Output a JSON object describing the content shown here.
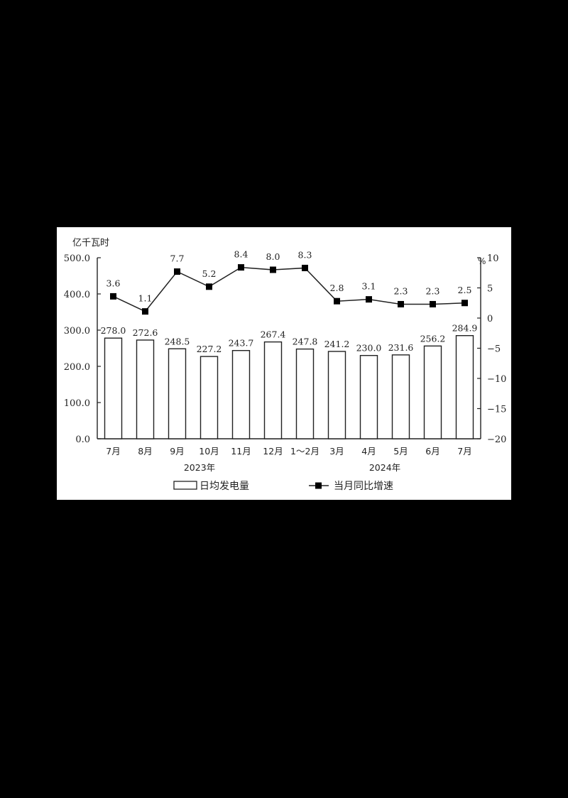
{
  "chart_data": {
    "type": "bar+line",
    "title": "",
    "left_axis": {
      "label": "亿千瓦时",
      "ticks": [
        "500.0",
        "400.0",
        "300.0",
        "200.0",
        "100.0",
        "0.0"
      ],
      "range": [
        0,
        500
      ]
    },
    "right_axis": {
      "label": "%",
      "ticks": [
        "10",
        "5",
        "0",
        "-5",
        "-10",
        "-15",
        "-20"
      ],
      "range": [
        -20,
        10
      ]
    },
    "categories": [
      "7月",
      "8月",
      "9月",
      "10月",
      "11月",
      "12月",
      "1～2月",
      "3月",
      "4月",
      "5月",
      "6月",
      "7月"
    ],
    "year_labels": [
      {
        "text": "2023年",
        "under_index": 2.7
      },
      {
        "text": "2024年",
        "under_index": 8.5
      }
    ],
    "series": [
      {
        "name": "日均发电量",
        "type": "bar",
        "axis": "left",
        "values": [
          278.0,
          272.6,
          248.5,
          227.2,
          243.7,
          267.4,
          247.8,
          241.2,
          230.0,
          231.6,
          256.2,
          284.9
        ],
        "labels": [
          "278.0",
          "272.6",
          "248.5",
          "227.2",
          "243.7",
          "267.4",
          "247.8",
          "241.2",
          "230.0",
          "231.6",
          "256.2",
          "284.9"
        ]
      },
      {
        "name": "当月同比增速",
        "type": "line",
        "axis": "right",
        "values": [
          3.6,
          1.1,
          7.7,
          5.2,
          8.4,
          8.0,
          8.3,
          2.8,
          3.1,
          2.3,
          2.3,
          2.5
        ],
        "labels": [
          "3.6",
          "1.1",
          "7.7",
          "5.2",
          "8.4",
          "8.0",
          "8.3",
          "2.8",
          "3.1",
          "2.3",
          "2.3",
          "2.5"
        ]
      }
    ],
    "legend": {
      "position": "bottom",
      "items": [
        "日均发电量",
        "当月同比增速"
      ]
    },
    "grid": false
  },
  "legend": {
    "bar_label": "日均发电量",
    "line_label": "当月同比增速"
  }
}
